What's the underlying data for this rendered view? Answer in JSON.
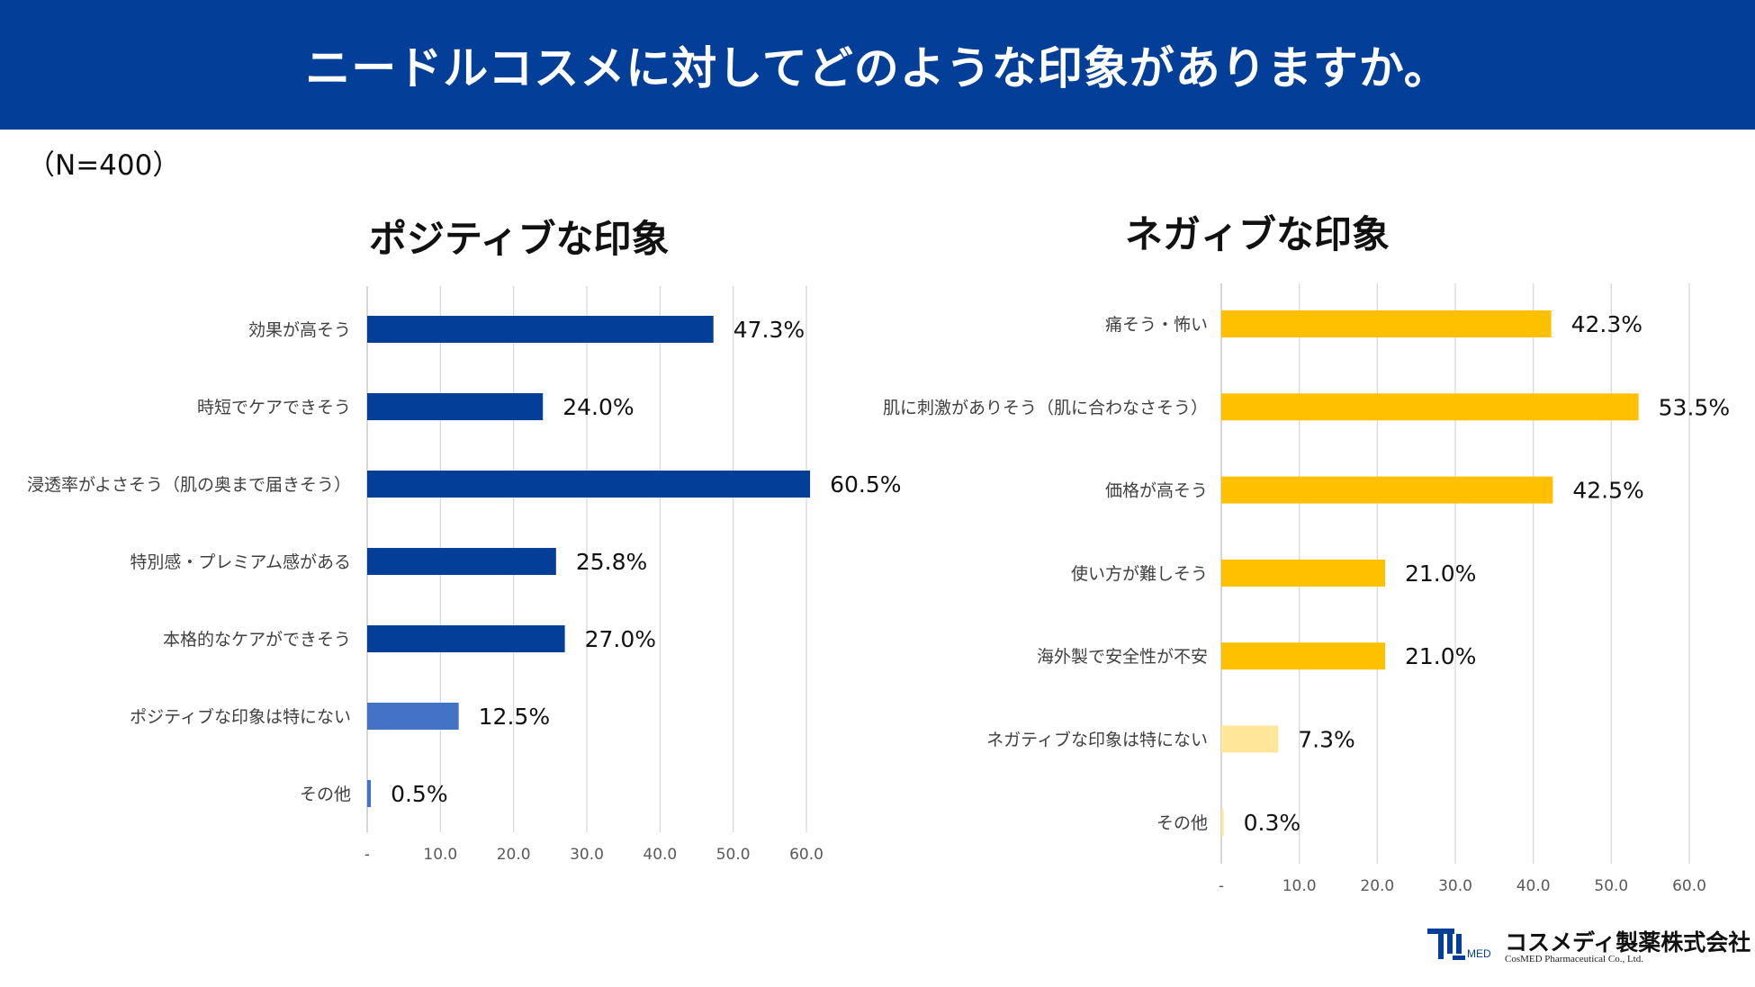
{
  "header": {
    "title": "ニードルコスメに対してどのような印象がありますか。"
  },
  "sample_size": "（N=400）",
  "chart_data": [
    {
      "type": "bar",
      "orientation": "horizontal",
      "title": "ポジティブな印象",
      "categories": [
        "効果が高そう",
        "時短でケアできそう",
        "浸透率がよさそう（肌の奥まで届きそう）",
        "特別感・プレミアム感がある",
        "本格的なケアができそう",
        "ポジティブな印象は特にない",
        "その他"
      ],
      "values": [
        47.3,
        24.0,
        60.5,
        25.8,
        27.0,
        12.5,
        0.5
      ],
      "value_labels": [
        "47.3%",
        "24.0%",
        "60.5%",
        "25.8%",
        "27.0%",
        "12.5%",
        "0.5%"
      ],
      "colors": [
        "#033f98",
        "#033f98",
        "#033f98",
        "#033f98",
        "#033f98",
        "#4472c4",
        "#4472c4"
      ],
      "xlim": [
        0,
        60
      ],
      "xticks": [
        0,
        10,
        20,
        30,
        40,
        50,
        60
      ],
      "xtick_labels": [
        "-",
        "10.0",
        "20.0",
        "30.0",
        "40.0",
        "50.0",
        "60.0"
      ],
      "grid": true
    },
    {
      "type": "bar",
      "orientation": "horizontal",
      "title": "ネガィブな印象",
      "categories": [
        "痛そう・怖い",
        "肌に刺激がありそう（肌に合わなさそう）",
        "価格が高そう",
        "使い方が難しそう",
        "海外製で安全性が不安",
        "ネガティブな印象は特にない",
        "その他"
      ],
      "values": [
        42.3,
        53.5,
        42.5,
        21.0,
        21.0,
        7.3,
        0.3
      ],
      "value_labels": [
        "42.3%",
        "53.5%",
        "42.5%",
        "21.0%",
        "21.0%",
        "7.3%",
        "0.3%"
      ],
      "colors": [
        "#ffc000",
        "#ffc000",
        "#ffc000",
        "#ffc000",
        "#ffc000",
        "#ffe699",
        "#ffe699"
      ],
      "xlim": [
        0,
        60
      ],
      "xticks": [
        0,
        10,
        20,
        30,
        40,
        50,
        60
      ],
      "xtick_labels": [
        "-",
        "10.0",
        "20.0",
        "30.0",
        "40.0",
        "50.0",
        "60.0"
      ],
      "grid": true
    }
  ],
  "footer": {
    "company_name": "コスメディ製薬株式会社",
    "company_name_en": "CosMED Pharmaceutical Co., Ltd.",
    "logo_text": "MED"
  }
}
